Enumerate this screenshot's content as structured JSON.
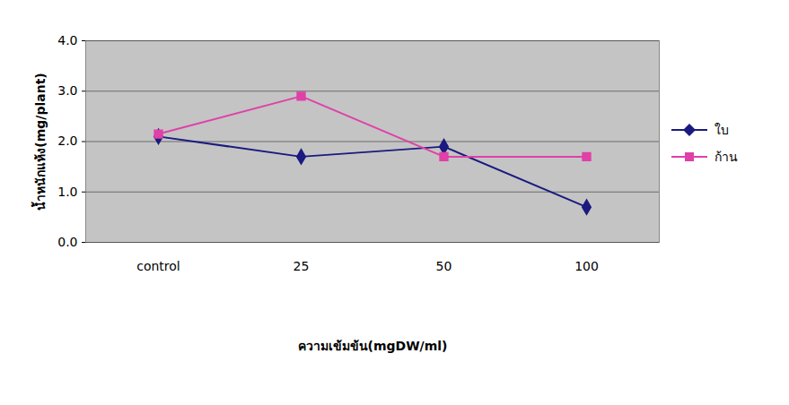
{
  "chart_data": {
    "type": "line",
    "categories": [
      "control",
      "25",
      "50",
      "100"
    ],
    "x_label": "ความเข้มข้น(mgDW/ml)",
    "y_label": "น้ำหนักแห้ง(mg/plant)",
    "series": [
      {
        "name": "ใบ",
        "color": "#1a1a80",
        "marker": "diamond",
        "values": [
          2.1,
          1.7,
          1.9,
          0.7
        ]
      },
      {
        "name": "ก้าน",
        "color": "#e040a8",
        "marker": "square",
        "values": [
          2.15,
          2.9,
          1.7,
          1.7
        ]
      }
    ],
    "ylim": [
      0,
      4
    ],
    "yticks": [
      0,
      1,
      2,
      3,
      4
    ],
    "grid": true,
    "legend": "right"
  }
}
